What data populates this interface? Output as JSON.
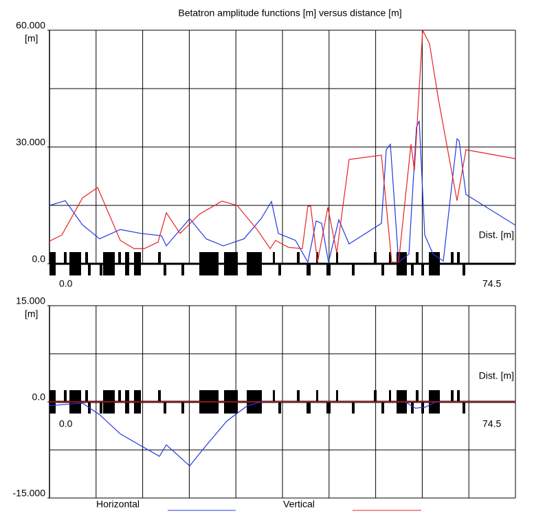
{
  "chart_data": [
    {
      "type": "line",
      "title": "Betatron amplitude functions [m] versus distance [m]",
      "y_label": "[m]",
      "x_label": "Dist. [m]",
      "xlim": [
        0,
        74.5
      ],
      "xticks": [
        {
          "value": 0,
          "label": "0.0"
        },
        74.5
      ],
      "ylim": [
        0,
        60
      ],
      "yticks": [
        {
          "value": 0,
          "label": "0.0"
        },
        {
          "value": 30,
          "label": "30.000"
        },
        {
          "value": 60,
          "label": "60.000"
        }
      ],
      "grid": true,
      "series": [
        {
          "name": "Horizontal",
          "color": "#2238e0",
          "x": [
            0,
            2.53,
            5.27,
            8.02,
            11.32,
            14.61,
            17.91,
            18.68,
            22.42,
            25.05,
            27.8,
            31.09,
            33.84,
            35.49,
            36.59,
            39.34,
            41.31,
            42.63,
            43.51,
            44.61,
            46.26,
            47.9,
            53.07,
            53.84,
            54.5,
            55.82,
            57.47,
            58.68,
            59.12,
            60.0,
            61.31,
            62.96,
            65.16,
            65.49,
            66.59,
            74.5
          ],
          "values": [
            15,
            16.2,
            10,
            6.4,
            8.8,
            7.8,
            7.2,
            4.6,
            11.6,
            6.4,
            4.6,
            6.4,
            11.6,
            16,
            7.8,
            6,
            0.4,
            11,
            10.4,
            0.4,
            11.3,
            5.1,
            10.4,
            29.3,
            30.7,
            0.4,
            2.5,
            35.1,
            36.7,
            7.4,
            2.5,
            0.7,
            32.1,
            31.6,
            17.8,
            9.9
          ]
        },
        {
          "name": "Vertical",
          "color": "#e82020",
          "x": [
            0,
            1.98,
            5.27,
            7.69,
            11.32,
            13.52,
            15.16,
            17.36,
            18.68,
            20.88,
            23.95,
            27.58,
            30.0,
            33.29,
            35.27,
            36.15,
            38.24,
            40.43,
            41.31,
            41.75,
            42.85,
            44.5,
            45.93,
            47.9,
            53.07,
            54.72,
            55.82,
            57.8,
            58.35,
            59.67,
            60.77,
            62.19,
            65.16,
            66.59,
            74.5
          ],
          "values": [
            5.8,
            7.4,
            16.9,
            19.6,
            6,
            3.9,
            3.9,
            5.6,
            13.1,
            7.8,
            12.7,
            16.1,
            15,
            8.6,
            3.9,
            6,
            4.2,
            3.9,
            14.8,
            14.8,
            0.4,
            14.5,
            2.8,
            26.8,
            27.9,
            0.4,
            0.4,
            30.7,
            24,
            60,
            56.5,
            42.2,
            16.2,
            29.3,
            27
          ]
        }
      ]
    },
    {
      "type": "line",
      "y_label": "[m]",
      "x_label": "Dist. [m]",
      "xlim": [
        0,
        74.5
      ],
      "xticks": [
        {
          "value": 0,
          "label": "0.0"
        },
        74.5
      ],
      "ylim": [
        -15,
        15
      ],
      "yticks": [
        {
          "value": -15,
          "label": "-15.000"
        },
        {
          "value": 0,
          "label": "0.0"
        },
        {
          "value": 15,
          "label": "15.000"
        }
      ],
      "grid": true,
      "series": [
        {
          "color": "#2238e0",
          "x": [
            0,
            2.53,
            5.27,
            8.02,
            11.32,
            17.58,
            18.68,
            22.42,
            25.05,
            28.35,
            31.64,
            33.84,
            53.51,
            56.85,
            58.5,
            60.14,
            61.79,
            74.5
          ],
          "values": [
            -0.6,
            -0.4,
            -0.2,
            -2,
            -5,
            -8.5,
            -6.7,
            -10,
            -6.8,
            -3,
            -0.6,
            0,
            0,
            0,
            -1,
            -0.8,
            0,
            0
          ]
        },
        {
          "color": "#e82020",
          "x": [
            0,
            74.5
          ],
          "values": [
            0,
            0
          ]
        }
      ]
    }
  ]
}
